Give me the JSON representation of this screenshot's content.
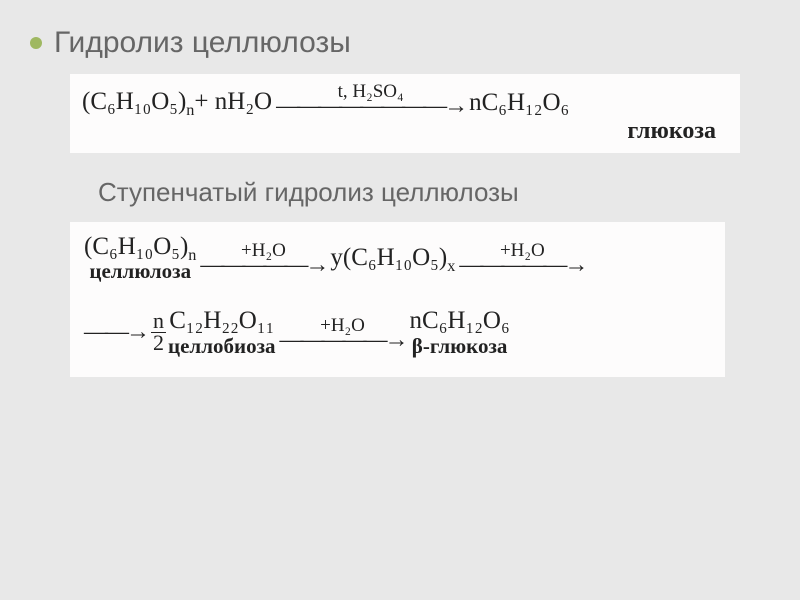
{
  "colors": {
    "slide_bg": "#e8e8e8",
    "bullet": "#9fb861",
    "title_text": "#666666",
    "eq_box_bg": "#fdfcfc",
    "eq_text": "#222222"
  },
  "title": "Гидролиз целлюлозы",
  "subtitle": "Ступенчатый гидролиз целлюлозы",
  "equation1": {
    "lhs_formula": "(C₆H₁₀O₅)",
    "lhs_sub": "n",
    "plus": " + nH₂O",
    "arrow_top": "t, H₂SO₄",
    "rhs": "nC₆H₁₂O₆",
    "product_label": "глюкоза"
  },
  "equation2": {
    "line1": {
      "term1_formula": "(C₆H₁₀O₅)",
      "term1_sub": "n",
      "term1_label": "целлюлоза",
      "arrow1_top": "+H₂O",
      "term2_prefix": "у",
      "term2_formula": "(C₆H₁₀O₅)",
      "term2_sub": "x",
      "arrow2_top": "+H₂O"
    },
    "line2": {
      "frac_num": "n",
      "frac_den": "2",
      "term1_formula": "C₁₂H₂₂O₁₁",
      "term1_label": "целлобиоза",
      "arrow_top": "+H₂O",
      "term2_formula": "nC₆H₁₂O₆",
      "term2_label": "β-глюкоза"
    }
  }
}
